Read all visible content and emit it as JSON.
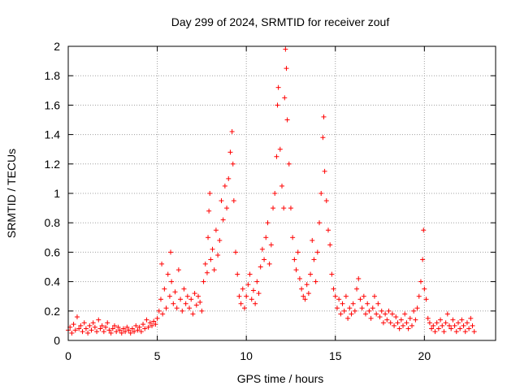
{
  "chart_data": {
    "type": "scatter",
    "title": "Day 299 of 2024, SRMTID for receiver zouf",
    "xlabel": "GPS time / hours",
    "ylabel": "SRMTID / TECUs",
    "xlim": [
      0,
      24
    ],
    "ylim": [
      0,
      2
    ],
    "xticks": [
      0,
      5,
      10,
      15,
      20
    ],
    "xtick_labels": [
      "0",
      "5",
      "10",
      "15",
      "20"
    ],
    "yticks": [
      0,
      0.2,
      0.4,
      0.6,
      0.8,
      1.0,
      1.2,
      1.4,
      1.6,
      1.8,
      2.0
    ],
    "ytick_labels": [
      "0",
      "0.2",
      "0.4",
      "0.6",
      "0.8",
      "1",
      "1.2",
      "1.4",
      "1.6",
      "1.8",
      "2"
    ],
    "grid": true,
    "marker": "plus",
    "series": [
      {
        "name": "SRMTID",
        "color": "#ff0000",
        "points": [
          [
            0.0,
            0.07
          ],
          [
            0.1,
            0.09
          ],
          [
            0.2,
            0.05
          ],
          [
            0.3,
            0.11
          ],
          [
            0.4,
            0.07
          ],
          [
            0.5,
            0.16
          ],
          [
            0.6,
            0.08
          ],
          [
            0.7,
            0.1
          ],
          [
            0.8,
            0.06
          ],
          [
            0.9,
            0.12
          ],
          [
            1.0,
            0.08
          ],
          [
            1.1,
            0.05
          ],
          [
            1.2,
            0.1
          ],
          [
            1.3,
            0.07
          ],
          [
            1.4,
            0.12
          ],
          [
            1.5,
            0.09
          ],
          [
            1.6,
            0.06
          ],
          [
            1.7,
            0.14
          ],
          [
            1.8,
            0.08
          ],
          [
            1.9,
            0.1
          ],
          [
            2.0,
            0.06
          ],
          [
            2.1,
            0.09
          ],
          [
            2.2,
            0.12
          ],
          [
            2.3,
            0.07
          ],
          [
            2.4,
            0.05
          ],
          [
            2.5,
            0.08
          ],
          [
            2.6,
            0.1
          ],
          [
            2.7,
            0.06
          ],
          [
            2.8,
            0.09
          ],
          [
            2.9,
            0.07
          ],
          [
            3.0,
            0.05
          ],
          [
            3.1,
            0.08
          ],
          [
            3.2,
            0.06
          ],
          [
            3.3,
            0.09
          ],
          [
            3.4,
            0.07
          ],
          [
            3.5,
            0.05
          ],
          [
            3.6,
            0.08
          ],
          [
            3.7,
            0.06
          ],
          [
            3.8,
            0.1
          ],
          [
            3.9,
            0.07
          ],
          [
            4.0,
            0.09
          ],
          [
            4.1,
            0.06
          ],
          [
            4.2,
            0.11
          ],
          [
            4.3,
            0.08
          ],
          [
            4.4,
            0.14
          ],
          [
            4.5,
            0.09
          ],
          [
            4.6,
            0.12
          ],
          [
            4.7,
            0.1
          ],
          [
            4.8,
            0.13
          ],
          [
            4.9,
            0.11
          ],
          [
            5.0,
            0.15
          ],
          [
            5.1,
            0.2
          ],
          [
            5.2,
            0.28
          ],
          [
            5.25,
            0.52
          ],
          [
            5.3,
            0.18
          ],
          [
            5.4,
            0.35
          ],
          [
            5.5,
            0.22
          ],
          [
            5.6,
            0.45
          ],
          [
            5.7,
            0.3
          ],
          [
            5.75,
            0.6
          ],
          [
            5.8,
            0.4
          ],
          [
            5.9,
            0.25
          ],
          [
            6.0,
            0.33
          ],
          [
            6.1,
            0.22
          ],
          [
            6.2,
            0.48
          ],
          [
            6.3,
            0.28
          ],
          [
            6.4,
            0.2
          ],
          [
            6.5,
            0.35
          ],
          [
            6.6,
            0.25
          ],
          [
            6.7,
            0.3
          ],
          [
            6.8,
            0.22
          ],
          [
            6.9,
            0.28
          ],
          [
            7.0,
            0.18
          ],
          [
            7.1,
            0.32
          ],
          [
            7.2,
            0.24
          ],
          [
            7.3,
            0.3
          ],
          [
            7.4,
            0.26
          ],
          [
            7.5,
            0.2
          ],
          [
            7.6,
            0.4
          ],
          [
            7.7,
            0.52
          ],
          [
            7.8,
            0.46
          ],
          [
            7.85,
            0.7
          ],
          [
            7.9,
            0.88
          ],
          [
            7.95,
            1.0
          ],
          [
            8.0,
            0.55
          ],
          [
            8.1,
            0.62
          ],
          [
            8.2,
            0.48
          ],
          [
            8.3,
            0.75
          ],
          [
            8.4,
            0.58
          ],
          [
            8.5,
            0.68
          ],
          [
            8.6,
            0.95
          ],
          [
            8.7,
            0.82
          ],
          [
            8.8,
            1.05
          ],
          [
            8.9,
            0.9
          ],
          [
            9.0,
            1.1
          ],
          [
            9.1,
            1.28
          ],
          [
            9.2,
            1.42
          ],
          [
            9.25,
            1.2
          ],
          [
            9.3,
            0.95
          ],
          [
            9.4,
            0.6
          ],
          [
            9.5,
            0.45
          ],
          [
            9.6,
            0.3
          ],
          [
            9.7,
            0.25
          ],
          [
            9.8,
            0.35
          ],
          [
            9.9,
            0.22
          ],
          [
            10.0,
            0.3
          ],
          [
            10.1,
            0.38
          ],
          [
            10.2,
            0.45
          ],
          [
            10.3,
            0.28
          ],
          [
            10.4,
            0.34
          ],
          [
            10.5,
            0.25
          ],
          [
            10.6,
            0.4
          ],
          [
            10.7,
            0.32
          ],
          [
            10.8,
            0.5
          ],
          [
            10.9,
            0.62
          ],
          [
            11.0,
            0.55
          ],
          [
            11.1,
            0.7
          ],
          [
            11.2,
            0.8
          ],
          [
            11.3,
            0.52
          ],
          [
            11.4,
            0.65
          ],
          [
            11.5,
            0.9
          ],
          [
            11.6,
            1.0
          ],
          [
            11.7,
            1.25
          ],
          [
            11.75,
            1.6
          ],
          [
            11.8,
            1.72
          ],
          [
            11.9,
            1.3
          ],
          [
            12.0,
            1.05
          ],
          [
            12.1,
            0.9
          ],
          [
            12.15,
            1.65
          ],
          [
            12.2,
            1.98
          ],
          [
            12.25,
            1.85
          ],
          [
            12.3,
            1.5
          ],
          [
            12.4,
            1.2
          ],
          [
            12.5,
            0.9
          ],
          [
            12.6,
            0.7
          ],
          [
            12.7,
            0.55
          ],
          [
            12.8,
            0.48
          ],
          [
            12.9,
            0.6
          ],
          [
            13.0,
            0.42
          ],
          [
            13.1,
            0.35
          ],
          [
            13.2,
            0.3
          ],
          [
            13.3,
            0.28
          ],
          [
            13.4,
            0.38
          ],
          [
            13.5,
            0.32
          ],
          [
            13.6,
            0.45
          ],
          [
            13.7,
            0.68
          ],
          [
            13.8,
            0.55
          ],
          [
            13.9,
            0.4
          ],
          [
            14.0,
            0.6
          ],
          [
            14.1,
            0.8
          ],
          [
            14.2,
            1.0
          ],
          [
            14.3,
            1.38
          ],
          [
            14.35,
            1.52
          ],
          [
            14.4,
            1.15
          ],
          [
            14.5,
            0.95
          ],
          [
            14.6,
            0.75
          ],
          [
            14.7,
            0.65
          ],
          [
            14.8,
            0.45
          ],
          [
            14.9,
            0.35
          ],
          [
            15.0,
            0.3
          ],
          [
            15.1,
            0.22
          ],
          [
            15.2,
            0.28
          ],
          [
            15.3,
            0.18
          ],
          [
            15.4,
            0.25
          ],
          [
            15.5,
            0.2
          ],
          [
            15.6,
            0.3
          ],
          [
            15.7,
            0.15
          ],
          [
            15.8,
            0.22
          ],
          [
            15.9,
            0.18
          ],
          [
            16.0,
            0.25
          ],
          [
            16.1,
            0.2
          ],
          [
            16.2,
            0.35
          ],
          [
            16.3,
            0.42
          ],
          [
            16.4,
            0.28
          ],
          [
            16.5,
            0.22
          ],
          [
            16.6,
            0.3
          ],
          [
            16.7,
            0.18
          ],
          [
            16.8,
            0.25
          ],
          [
            16.9,
            0.2
          ],
          [
            17.0,
            0.15
          ],
          [
            17.1,
            0.22
          ],
          [
            17.2,
            0.3
          ],
          [
            17.3,
            0.18
          ],
          [
            17.4,
            0.25
          ],
          [
            17.5,
            0.16
          ],
          [
            17.6,
            0.2
          ],
          [
            17.7,
            0.12
          ],
          [
            17.8,
            0.18
          ],
          [
            17.9,
            0.14
          ],
          [
            18.0,
            0.2
          ],
          [
            18.1,
            0.12
          ],
          [
            18.2,
            0.18
          ],
          [
            18.3,
            0.1
          ],
          [
            18.4,
            0.16
          ],
          [
            18.5,
            0.12
          ],
          [
            18.6,
            0.08
          ],
          [
            18.7,
            0.14
          ],
          [
            18.8,
            0.1
          ],
          [
            18.9,
            0.18
          ],
          [
            19.0,
            0.12
          ],
          [
            19.1,
            0.08
          ],
          [
            19.2,
            0.15
          ],
          [
            19.3,
            0.1
          ],
          [
            19.4,
            0.2
          ],
          [
            19.5,
            0.14
          ],
          [
            19.6,
            0.22
          ],
          [
            19.7,
            0.3
          ],
          [
            19.8,
            0.4
          ],
          [
            19.9,
            0.55
          ],
          [
            19.95,
            0.75
          ],
          [
            20.0,
            0.35
          ],
          [
            20.1,
            0.28
          ],
          [
            20.2,
            0.15
          ],
          [
            20.3,
            0.12
          ],
          [
            20.4,
            0.08
          ],
          [
            20.5,
            0.1
          ],
          [
            20.6,
            0.06
          ],
          [
            20.7,
            0.12
          ],
          [
            20.8,
            0.08
          ],
          [
            20.9,
            0.14
          ],
          [
            21.0,
            0.1
          ],
          [
            21.1,
            0.06
          ],
          [
            21.2,
            0.12
          ],
          [
            21.3,
            0.18
          ],
          [
            21.4,
            0.1
          ],
          [
            21.5,
            0.08
          ],
          [
            21.6,
            0.14
          ],
          [
            21.7,
            0.1
          ],
          [
            21.8,
            0.06
          ],
          [
            21.9,
            0.12
          ],
          [
            22.0,
            0.08
          ],
          [
            22.1,
            0.14
          ],
          [
            22.2,
            0.1
          ],
          [
            22.3,
            0.06
          ],
          [
            22.4,
            0.12
          ],
          [
            22.5,
            0.08
          ],
          [
            22.6,
            0.15
          ],
          [
            22.7,
            0.1
          ],
          [
            22.8,
            0.06
          ]
        ]
      }
    ]
  }
}
